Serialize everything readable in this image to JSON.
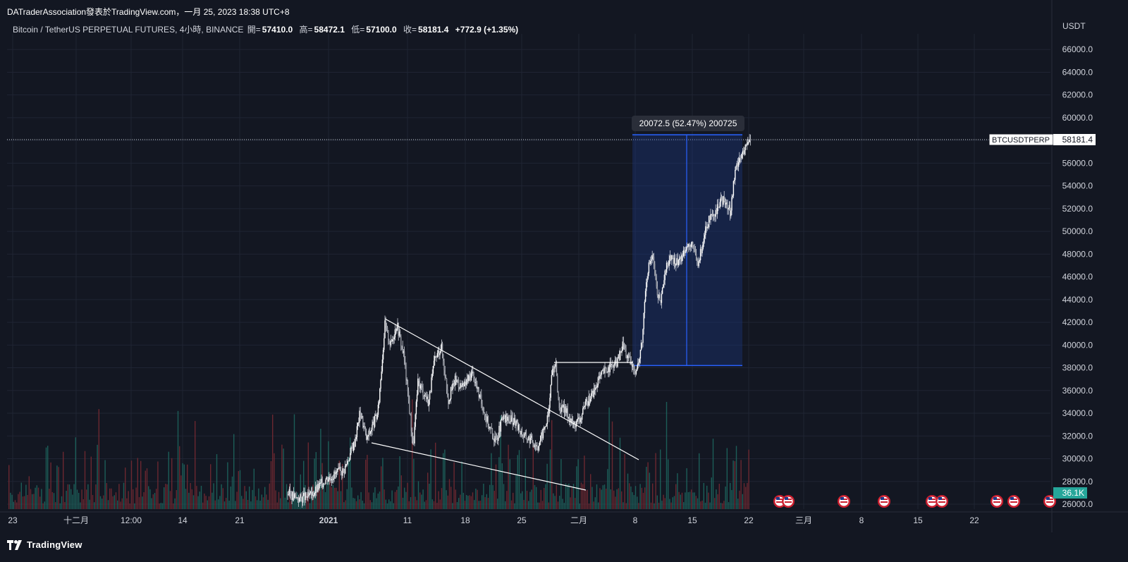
{
  "header": {
    "attribution": "DATraderAssociation發表於TradingView.com，一月 25, 2023 18:38 UTC+8",
    "symbol_desc": "Bitcoin / TetherUS PERPETUAL FUTURES, 4小時, BINANCE",
    "open_label": "開=",
    "open_value": "57410.0",
    "high_label": "高=",
    "high_value": "58472.1",
    "low_label": "低=",
    "low_value": "57100.0",
    "close_label": "收=",
    "close_value": "58181.4",
    "change": "+772.9 (+1.35%)"
  },
  "price_axis": {
    "currency": "USDT",
    "ticks": [
      "66000.0",
      "64000.0",
      "62000.0",
      "60000.0",
      "56000.0",
      "54000.0",
      "52000.0",
      "50000.0",
      "48000.0",
      "46000.0",
      "44000.0",
      "42000.0",
      "40000.0",
      "38000.0",
      "36000.0",
      "34000.0",
      "32000.0",
      "30000.0",
      "28000.0",
      "26000.0"
    ],
    "symbol_tag": "BTCUSDTPERP",
    "last_price": "58181.4",
    "volume_tag": "36.1K"
  },
  "time_axis": {
    "labels": [
      "23",
      "十二月",
      "12:00",
      "14",
      "21",
      "2021",
      "11",
      "18",
      "25",
      "二月",
      "8",
      "15",
      "22",
      "三月",
      "8",
      "15",
      "22"
    ]
  },
  "measure_tool": {
    "label": "20072.5 (52.47%) 200725"
  },
  "chart_data": {
    "type": "candlestick",
    "symbol": "BTCUSDTPERP",
    "timeframe": "4小時",
    "exchange": "BINANCE",
    "ylim": [
      26000,
      67000
    ],
    "series": [
      {
        "name": "",
        "points": [
          [
            0,
            27000
          ],
          [
            15,
            26500
          ],
          [
            32,
            26700
          ],
          [
            55,
            28300
          ],
          [
            80,
            29000
          ],
          [
            95,
            31500
          ],
          [
            103,
            34200
          ],
          [
            112,
            31700
          ],
          [
            128,
            34000
          ],
          [
            138,
            41800
          ],
          [
            146,
            40000
          ],
          [
            155,
            41900
          ],
          [
            165,
            39000
          ],
          [
            171,
            35500
          ],
          [
            178,
            31000
          ],
          [
            185,
            36800
          ],
          [
            200,
            35000
          ],
          [
            208,
            38500
          ],
          [
            218,
            40000
          ],
          [
            228,
            35200
          ],
          [
            238,
            37000
          ],
          [
            248,
            36200
          ],
          [
            262,
            37600
          ],
          [
            272,
            35500
          ],
          [
            285,
            33000
          ],
          [
            295,
            31500
          ],
          [
            305,
            33500
          ],
          [
            320,
            33400
          ],
          [
            335,
            32000
          ],
          [
            345,
            31700
          ],
          [
            355,
            31100
          ],
          [
            362,
            32300
          ],
          [
            370,
            33800
          ],
          [
            375,
            37800
          ],
          [
            380,
            38300
          ],
          [
            385,
            34500
          ],
          [
            395,
            34200
          ],
          [
            405,
            33000
          ],
          [
            415,
            33500
          ],
          [
            425,
            35000
          ],
          [
            435,
            36000
          ],
          [
            445,
            37400
          ],
          [
            455,
            38000
          ],
          [
            465,
            38300
          ],
          [
            472,
            39200
          ],
          [
            476,
            40300
          ],
          [
            481,
            39000
          ],
          [
            488,
            38200
          ],
          [
            494,
            37800
          ],
          [
            498,
            38500
          ],
          [
            503,
            40500
          ],
          [
            508,
            45500
          ],
          [
            512,
            47000
          ],
          [
            518,
            47800
          ],
          [
            524,
            44500
          ],
          [
            530,
            44000
          ],
          [
            536,
            46500
          ],
          [
            542,
            47800
          ],
          [
            548,
            47200
          ],
          [
            558,
            47600
          ],
          [
            565,
            48800
          ],
          [
            575,
            48600
          ],
          [
            582,
            47000
          ],
          [
            590,
            49500
          ],
          [
            598,
            51000
          ],
          [
            606,
            51300
          ],
          [
            614,
            52800
          ],
          [
            622,
            52500
          ],
          [
            628,
            51700
          ],
          [
            634,
            55000
          ],
          [
            640,
            56500
          ],
          [
            646,
            56800
          ],
          [
            652,
            57700
          ],
          [
            657,
            58181
          ]
        ]
      }
    ],
    "annotations": {
      "upper_trendline": [
        [
          42400
        ],
        [
          30000
        ]
      ],
      "lower_trendline": [
        [
          31500
        ],
        [
          27200
        ]
      ],
      "breakout_level": 38500,
      "measure_low": 38200,
      "measure_high": 58500
    }
  }
}
